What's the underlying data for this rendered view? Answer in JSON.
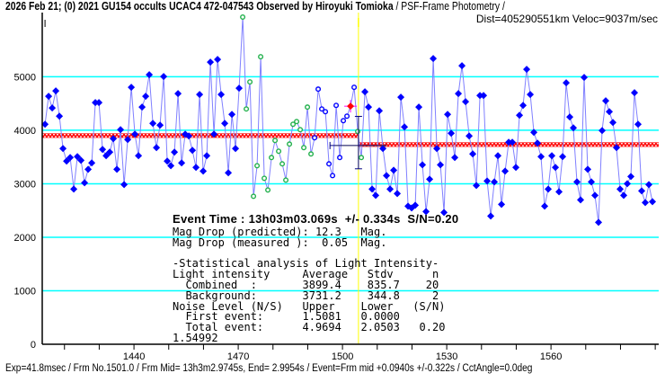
{
  "header": {
    "title_bold": "2026 Feb 21; (0) 2021 GU154 occults UCAC4 472-047543 Observed by Hiroyuki Tomioka",
    "title_rest": " / PSF-Frame Photometry /",
    "subtitle": "Dist=405290551km Veloc=9037m/sec"
  },
  "event_text": "Event Time : 13h03m03.069s  +/- 0.334s  S/N=0.20",
  "stats_lines": [
    "Mag Drop (predicted): 12.3   Mag.",
    "Mag Drop (measured ):  0.05  Mag.",
    "",
    "-Statistical analysis of Light Intensity-",
    "Light intensity     Average   Stdv      n",
    "  Combined  :       3899.4    835.7    20",
    "  Background:       3731.2    344.8     2",
    "Noise Level (N/S)   Upper    Lower   (S/N)",
    "  First event:      1.5081   0.0000",
    "  Total event:      4.9694   2.0503   0.20",
    "1.54992"
  ],
  "footer": "Exp=41.8msec / Frm No.1501.0 / Frm Mid= 13h3m2.9745s,  End= 2.9954s / Event=Frm mid +0.0940s +/-0.322s / CctAngle=0.0deg",
  "chart_data": {
    "type": "line",
    "xlim": [
      1413.6,
      1591.0
    ],
    "ylim": [
      0,
      6200
    ],
    "x_ticks": [
      1440,
      1470,
      1500,
      1530,
      1560
    ],
    "x_tick_labels": [
      "1440",
      "1470",
      "1500",
      "1530",
      "1560"
    ],
    "y_ticks": [
      0,
      1000,
      2000,
      3000,
      4000,
      5000
    ],
    "y_tick_labels": [
      "0",
      "1000",
      "2000",
      "3000",
      "4000",
      "5000"
    ],
    "grid": "horizontal cyan at each 1000",
    "x_first": 1414.4,
    "x_last": 1589.2,
    "values": [
      4113,
      4635,
      4416,
      4736,
      4264,
      3658,
      3423,
      3490,
      2901,
      3507,
      3439,
      3019,
      3271,
      3389,
      4517,
      4517,
      3641,
      3524,
      3591,
      3843,
      3271,
      4012,
      2985,
      3827,
      4803,
      3928,
      3524,
      4433,
      4635,
      5039,
      4130,
      3675,
      4096,
      5005,
      3423,
      3338,
      3591,
      4685,
      3389,
      3928,
      3894,
      3625,
      3305,
      4668,
      3237,
      3524,
      5274,
      3928,
      5325,
      4668,
      4130,
      3204,
      4298,
      3658,
      4786,
      6116,
      4399,
      4904,
      2766,
      3338,
      5375,
      3103,
      2884,
      3490,
      3810,
      3608,
      3372,
      3069,
      3742,
      4113,
      4163,
      4012,
      3675,
      4433,
      3557,
      3860,
      4769,
      4399,
      4348,
      3372,
      3153,
      4466,
      3490,
      4180,
      4264,
      4450,
      4803,
      3978,
      3490,
      4719,
      4433,
      2901,
      2783,
      4365,
      3658,
      3153,
      2901,
      3254,
      2817,
      4618,
      4062,
      2581,
      2547,
      2598,
      4433,
      3355,
      2480,
      3086,
      5342,
      3658,
      3355,
      2463,
      4298,
      3944,
      3490,
      4685,
      5207,
      4534,
      3894,
      3557,
      2968,
      4651,
      4651,
      3052,
      2396,
      3035,
      3524,
      2614,
      3237,
      3776,
      3776,
      3305,
      4281,
      4466,
      5140,
      4668,
      3961,
      3759,
      3507,
      2581,
      2901,
      3524,
      3305,
      2850,
      3507,
      4887,
      4248,
      4045,
      3035,
      2699,
      4988,
      3271,
      3035,
      2783,
      2278,
      3995,
      4551,
      4348,
      4146,
      3675,
      2901,
      2783,
      3002,
      3136,
      4702,
      4113,
      2867,
      2648,
      2985,
      2665
    ],
    "marker_groups": [
      {
        "count": 55,
        "marker": "blue-filled-diamond"
      },
      {
        "count": 20,
        "marker": "green-open-circle"
      },
      {
        "count": 10,
        "marker": "blue-open-circle"
      },
      {
        "count": 1,
        "marker": "red-point"
      },
      {
        "count": 1,
        "marker": "blue-open-circle"
      },
      {
        "count": 2,
        "marker": "green-open-circle"
      },
      {
        "count": 81,
        "marker": "blue-filled-diamond"
      }
    ],
    "combined_level": 3899.4,
    "background_level": 3731.2,
    "event_frame": 1504.6,
    "event_error_frames": [
      1496.4,
      1512.7
    ],
    "event_error_levels": [
      3280,
      4260
    ],
    "colors": {
      "line": "#8080ff",
      "filled": "#0000ff",
      "green": "#22b14c",
      "red": "#ff0000",
      "magenta": "#ff00ff",
      "grid": "#00ffff",
      "event": "#ffff00",
      "error_bar": "#000080"
    }
  }
}
